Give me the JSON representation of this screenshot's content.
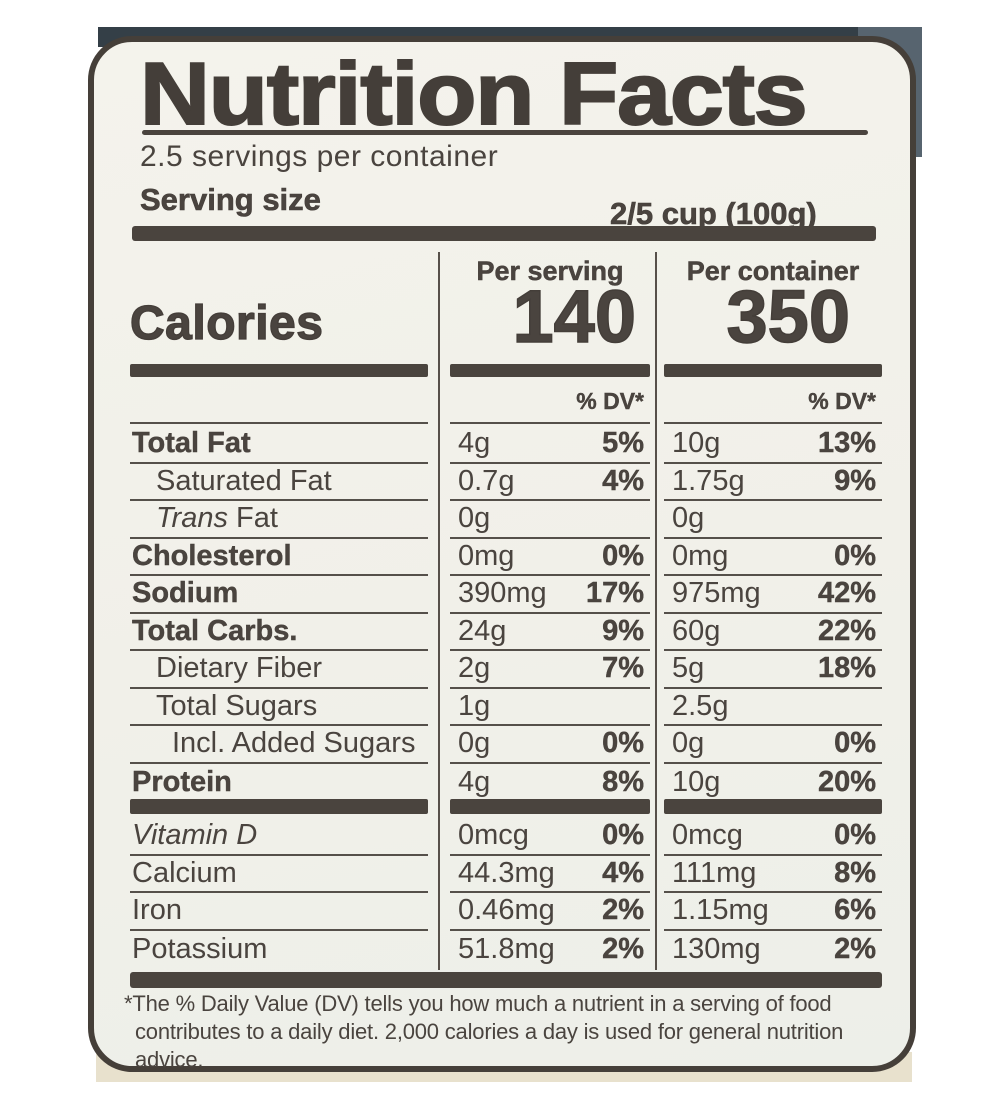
{
  "nutrition_label": {
    "title": "Nutrition Facts",
    "servings_per_container": "2.5 servings per container",
    "serving_size": {
      "label": "Serving size",
      "value": "2/5 cup (100g)"
    },
    "calories": {
      "label": "Calories",
      "columns": [
        {
          "header": "Per serving",
          "value": "140"
        },
        {
          "header": "Per container",
          "value": "350"
        }
      ]
    },
    "dv_header": "% DV*",
    "nutrient_rows": [
      {
        "section": "main",
        "bold": true,
        "indent": 0,
        "name_parts": [
          {
            "text": "Total Fat"
          }
        ],
        "per_serving": {
          "amount": "4g",
          "dv": "5%"
        },
        "per_container": {
          "amount": "10g",
          "dv": "13%"
        }
      },
      {
        "section": "main",
        "bold": false,
        "indent": 1,
        "name_parts": [
          {
            "text": "Saturated Fat"
          }
        ],
        "per_serving": {
          "amount": "0.7g",
          "dv": "4%"
        },
        "per_container": {
          "amount": "1.75g",
          "dv": "9%"
        }
      },
      {
        "section": "main",
        "bold": false,
        "indent": 1,
        "name_parts": [
          {
            "text": "Trans",
            "italic": true
          },
          {
            "text": " Fat"
          }
        ],
        "per_serving": {
          "amount": "0g",
          "dv": ""
        },
        "per_container": {
          "amount": "0g",
          "dv": ""
        }
      },
      {
        "section": "main",
        "bold": true,
        "indent": 0,
        "name_parts": [
          {
            "text": "Cholesterol"
          }
        ],
        "per_serving": {
          "amount": "0mg",
          "dv": "0%"
        },
        "per_container": {
          "amount": "0mg",
          "dv": "0%"
        }
      },
      {
        "section": "main",
        "bold": true,
        "indent": 0,
        "name_parts": [
          {
            "text": "Sodium"
          }
        ],
        "per_serving": {
          "amount": "390mg",
          "dv": "17%"
        },
        "per_container": {
          "amount": "975mg",
          "dv": "42%"
        }
      },
      {
        "section": "main",
        "bold": true,
        "indent": 0,
        "name_parts": [
          {
            "text": "Total Carbs."
          }
        ],
        "per_serving": {
          "amount": "24g",
          "dv": "9%"
        },
        "per_container": {
          "amount": "60g",
          "dv": "22%"
        }
      },
      {
        "section": "main",
        "bold": false,
        "indent": 1,
        "name_parts": [
          {
            "text": "Dietary Fiber"
          }
        ],
        "per_serving": {
          "amount": "2g",
          "dv": "7%"
        },
        "per_container": {
          "amount": "5g",
          "dv": "18%"
        }
      },
      {
        "section": "main",
        "bold": false,
        "indent": 1,
        "name_parts": [
          {
            "text": "Total Sugars"
          }
        ],
        "per_serving": {
          "amount": "1g",
          "dv": ""
        },
        "per_container": {
          "amount": "2.5g",
          "dv": ""
        }
      },
      {
        "section": "main",
        "bold": false,
        "indent": 2,
        "name_parts": [
          {
            "text": "Incl. Added Sugars"
          }
        ],
        "per_serving": {
          "amount": "0g",
          "dv": "0%"
        },
        "per_container": {
          "amount": "0g",
          "dv": "0%"
        }
      },
      {
        "section": "main",
        "bold": true,
        "indent": 0,
        "name_parts": [
          {
            "text": "Protein"
          }
        ],
        "per_serving": {
          "amount": "4g",
          "dv": "8%"
        },
        "per_container": {
          "amount": "10g",
          "dv": "20%"
        }
      },
      {
        "section": "vitamins",
        "bold": false,
        "indent": 0,
        "name_parts": [
          {
            "text": "Vitamin D",
            "italic": true
          }
        ],
        "per_serving": {
          "amount": "0mcg",
          "dv": "0%"
        },
        "per_container": {
          "amount": "0mcg",
          "dv": "0%"
        }
      },
      {
        "section": "vitamins",
        "bold": false,
        "indent": 0,
        "name_parts": [
          {
            "text": "Calcium"
          }
        ],
        "per_serving": {
          "amount": "44.3mg",
          "dv": "4%"
        },
        "per_container": {
          "amount": "111mg",
          "dv": "8%"
        }
      },
      {
        "section": "vitamins",
        "bold": false,
        "indent": 0,
        "name_parts": [
          {
            "text": "Iron"
          }
        ],
        "per_serving": {
          "amount": "0.46mg",
          "dv": "2%"
        },
        "per_container": {
          "amount": "1.15mg",
          "dv": "6%"
        }
      },
      {
        "section": "vitamins",
        "bold": false,
        "indent": 0,
        "name_parts": [
          {
            "text": "Potassium"
          }
        ],
        "per_serving": {
          "amount": "51.8mg",
          "dv": "2%"
        },
        "per_container": {
          "amount": "130mg",
          "dv": "2%"
        }
      }
    ],
    "footnote": "*The % Daily Value (DV) tells you how much a nutrient in a serving of food\ncontributes to a daily diet. 2,000 calories a day is used for general nutrition\nadvice.",
    "colors": {
      "ink": "#4a443f",
      "label_background": "#f1f0e9",
      "package_top": "#343f47",
      "package_bottom": "#e8e1cd"
    }
  }
}
